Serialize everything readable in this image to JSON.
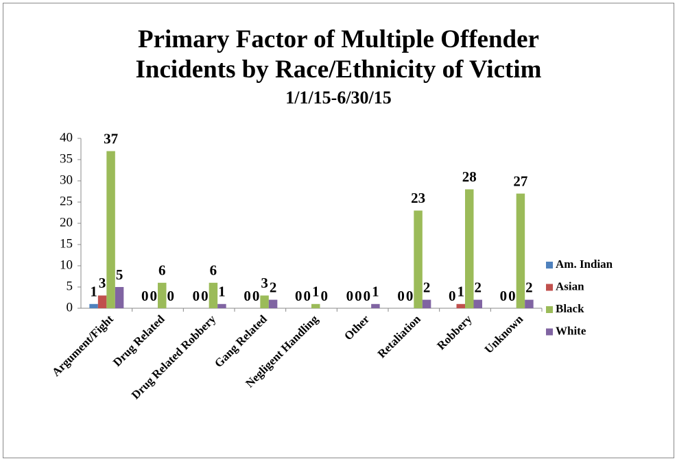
{
  "chart_data": {
    "type": "bar",
    "title": "Primary Factor of Multiple Offender Incidents by Race/Ethnicity of Victim",
    "subtitle": "1/1/15-6/30/15",
    "categories": [
      "Argument/Fight",
      "Drug Related",
      "Drug Related Robbery",
      "Gang Related",
      "Negligent Handling",
      "Other",
      "Retaliation",
      "Robbery",
      "Unknown"
    ],
    "series": [
      {
        "name": "Am. Indian",
        "color": "#4f81bd",
        "values": [
          1,
          0,
          0,
          0,
          0,
          0,
          0,
          0,
          0
        ]
      },
      {
        "name": "Asian",
        "color": "#c0504d",
        "values": [
          3,
          0,
          0,
          0,
          0,
          0,
          0,
          1,
          0
        ]
      },
      {
        "name": "Black",
        "color": "#9bbb59",
        "values": [
          37,
          6,
          6,
          3,
          1,
          0,
          23,
          28,
          27
        ]
      },
      {
        "name": "White",
        "color": "#8064a2",
        "values": [
          5,
          0,
          1,
          2,
          0,
          1,
          2,
          2,
          2
        ]
      }
    ],
    "ylim": [
      0,
      40
    ],
    "yticks": [
      0,
      5,
      10,
      15,
      20,
      25,
      30,
      35,
      40
    ],
    "legend": "right"
  }
}
